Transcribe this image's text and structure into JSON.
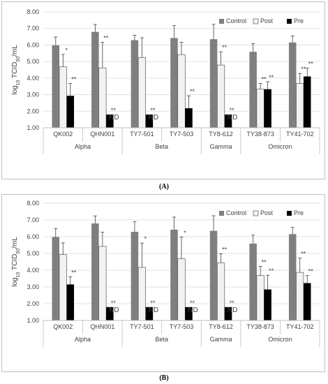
{
  "colors": {
    "control": "#7f7f7f",
    "post": "#f2f2f2",
    "pre": "#000000",
    "grid": "#d9d9d9",
    "axis": "#bfbfbf",
    "text": "#404040"
  },
  "chart_data": [
    {
      "type": "bar",
      "panel_label": "(A)",
      "ylabel": "log10 TCID50/mL",
      "ylim": [
        1.0,
        8.0
      ],
      "yticks": [
        "1.00",
        "2.00",
        "3.00",
        "4.00",
        "5.00",
        "6.00",
        "7.00",
        "8.00"
      ],
      "grid": true,
      "legend_position": "top-right",
      "categories": [
        "QK002",
        "QHN001",
        "TY7-501",
        "TY7-503",
        "TY8-612",
        "TY38-873",
        "TY41-702"
      ],
      "groups": [
        {
          "label": "Alpha",
          "span": [
            0,
            1
          ]
        },
        {
          "label": "Beta",
          "span": [
            2,
            3
          ]
        },
        {
          "label": "Gamma",
          "span": [
            4,
            4
          ]
        },
        {
          "label": "Omicron",
          "span": [
            5,
            6
          ]
        }
      ],
      "series": [
        {
          "name": "Control",
          "values": [
            5.98,
            6.79,
            6.29,
            6.42,
            6.35,
            5.59,
            6.15
          ],
          "errors": [
            0.5,
            0.45,
            0.3,
            0.75,
            0.9,
            0.5,
            0.4
          ],
          "labels": [
            "",
            "",
            "",
            "",
            "",
            "",
            ""
          ]
        },
        {
          "name": "Post",
          "values": [
            4.68,
            4.62,
            5.24,
            5.42,
            4.79,
            3.33,
            3.68
          ],
          "errors": [
            0.75,
            1.55,
            1.2,
            0.75,
            0.8,
            0.35,
            0.6
          ],
          "labels": [
            "*",
            "**",
            "",
            "",
            "**",
            "**",
            "**"
          ]
        },
        {
          "name": "Pre",
          "values": [
            2.93,
            1.8,
            1.8,
            2.18,
            1.8,
            3.33,
            4.1
          ],
          "errors": [
            0.75,
            0,
            0,
            0.75,
            0,
            0.45,
            0.5
          ],
          "labels": [
            "**",
            "**\nND",
            "**\nND",
            "**",
            "**\nND",
            "**",
            "**"
          ]
        }
      ]
    },
    {
      "type": "bar",
      "panel_label": "(B)",
      "ylabel": "log10 TCID50/mL",
      "ylim": [
        1.0,
        8.0
      ],
      "yticks": [
        "1.00",
        "2.00",
        "3.00",
        "4.00",
        "5.00",
        "6.00",
        "7.00",
        "8.00"
      ],
      "grid": true,
      "legend_position": "top-right",
      "categories": [
        "QK002",
        "QHN001",
        "TY7-501",
        "TY7-503",
        "TY8-612",
        "TY38-873",
        "TY41-702"
      ],
      "groups": [
        {
          "label": "Alpha",
          "span": [
            0,
            1
          ]
        },
        {
          "label": "Beta",
          "span": [
            2,
            3
          ]
        },
        {
          "label": "Gamma",
          "span": [
            4,
            4
          ]
        },
        {
          "label": "Omicron",
          "span": [
            5,
            6
          ]
        }
      ],
      "series": [
        {
          "name": "Control",
          "values": [
            5.98,
            6.79,
            6.29,
            6.42,
            6.35,
            5.59,
            6.15
          ],
          "errors": [
            0.5,
            0.45,
            0.6,
            0.75,
            0.9,
            0.5,
            0.4
          ],
          "labels": [
            "",
            "",
            "",
            "",
            "",
            "",
            ""
          ]
        },
        {
          "name": "Post",
          "values": [
            4.93,
            5.42,
            4.17,
            4.68,
            4.43,
            3.68,
            3.87
          ],
          "errors": [
            0.7,
            0.85,
            1.45,
            1.3,
            0.55,
            0.55,
            0.85
          ],
          "labels": [
            "",
            "",
            "*",
            "*",
            "**",
            "**",
            "**"
          ]
        },
        {
          "name": "Pre",
          "values": [
            3.15,
            1.8,
            1.8,
            1.8,
            1.8,
            2.85,
            3.23
          ],
          "errors": [
            0.45,
            0,
            0,
            0,
            0,
            0.85,
            0.45
          ],
          "labels": [
            "**",
            "**\nND",
            "**\nND",
            "**\nND",
            "**\nND",
            "**",
            "**"
          ]
        }
      ]
    }
  ]
}
